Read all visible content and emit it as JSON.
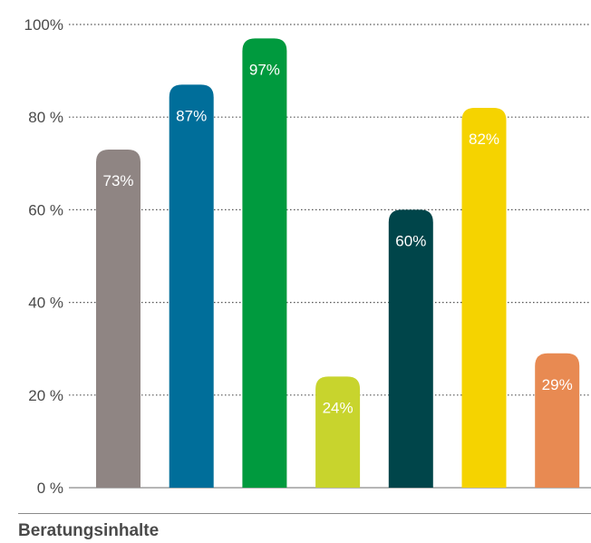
{
  "chart_data": {
    "type": "bar",
    "categories": [
      "",
      "",
      "",
      "",
      "",
      "",
      ""
    ],
    "values": [
      73,
      87,
      97,
      24,
      60,
      82,
      29
    ],
    "data_labels": [
      "73%",
      "87%",
      "97%",
      "24%",
      "60%",
      "82%",
      "29%"
    ],
    "colors": [
      "#8f8583",
      "#006e9a",
      "#009a3e",
      "#c8d42d",
      "#00454a",
      "#f5d300",
      "#e88a52"
    ],
    "ylim": [
      0,
      100
    ],
    "yticks": [
      0,
      20,
      40,
      60,
      80,
      100
    ],
    "ytick_labels": [
      "0 %",
      "20 %",
      "40 %",
      "60 %",
      "80 %",
      "100%"
    ],
    "grid": true,
    "footer_label": "Beratungsinhalte"
  }
}
